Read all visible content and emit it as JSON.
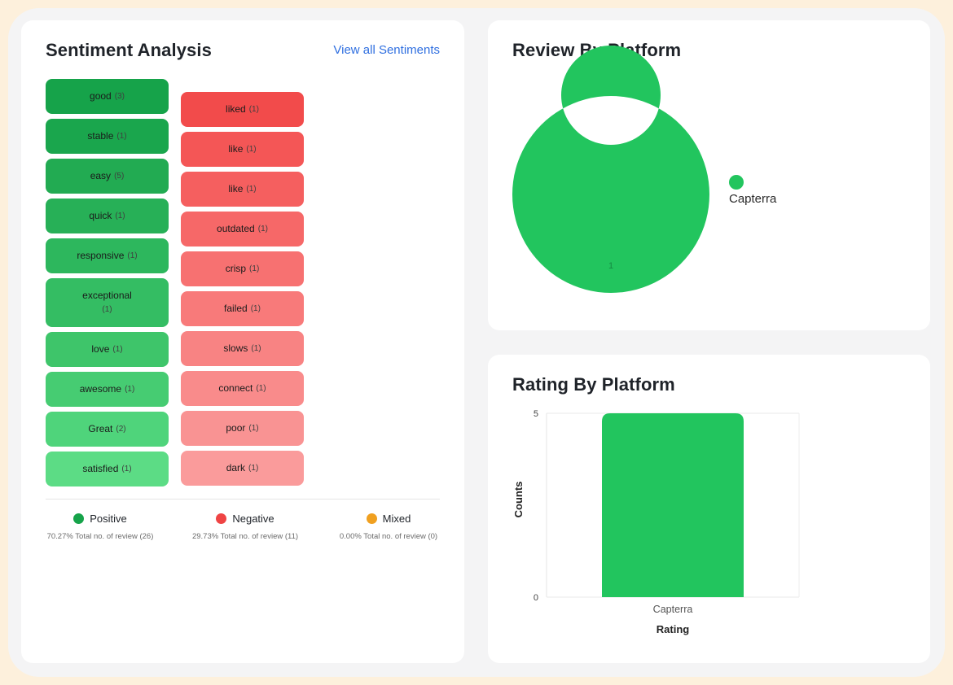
{
  "sentiment": {
    "title": "Sentiment Analysis",
    "view_all_label": "View all Sentiments",
    "positive_words": [
      {
        "word": "good",
        "count": "(3)",
        "color": "#16a34a"
      },
      {
        "word": "stable",
        "count": "(1)",
        "color": "#1aa64d"
      },
      {
        "word": "easy",
        "count": "(5)",
        "color": "#22ab52"
      },
      {
        "word": "quick",
        "count": "(1)",
        "color": "#27b057"
      },
      {
        "word": "responsive",
        "count": "(1)",
        "color": "#2db75d"
      },
      {
        "word": "exceptional",
        "count": "(1)",
        "color": "#34bd63"
      },
      {
        "word": "love",
        "count": "(1)",
        "color": "#3ec56a"
      },
      {
        "word": "awesome",
        "count": "(1)",
        "color": "#46cc72"
      },
      {
        "word": "Great",
        "count": "(2)",
        "color": "#4fd47b"
      },
      {
        "word": "satisfied",
        "count": "(1)",
        "color": "#5cdc85"
      }
    ],
    "negative_words": [
      {
        "word": "liked",
        "count": "(1)",
        "color": "#f24b4b"
      },
      {
        "word": "like",
        "count": "(1)",
        "color": "#f45656"
      },
      {
        "word": "like",
        "count": "(1)",
        "color": "#f55f5f"
      },
      {
        "word": "outdated",
        "count": "(1)",
        "color": "#f66868"
      },
      {
        "word": "crisp",
        "count": "(1)",
        "color": "#f77171"
      },
      {
        "word": "failed",
        "count": "(1)",
        "color": "#f87a7a"
      },
      {
        "word": "slows",
        "count": "(1)",
        "color": "#f88383"
      },
      {
        "word": "connect",
        "count": "(1)",
        "color": "#f98b8b"
      },
      {
        "word": "poor",
        "count": "(1)",
        "color": "#f99393"
      },
      {
        "word": "dark",
        "count": "(1)",
        "color": "#fa9b9b"
      }
    ],
    "legend": [
      {
        "label": "Positive",
        "summary": "70.27% Total no. of review (26)",
        "color": "#16a34a"
      },
      {
        "label": "Negative",
        "summary": "29.73% Total no. of review (11)",
        "color": "#ef4444"
      },
      {
        "label": "Mixed",
        "summary": "0.00% Total no. of review (0)",
        "color": "#f0a020"
      }
    ]
  },
  "review_by_platform": {
    "title": "Review By Platform",
    "legend_label": "Capterra",
    "chart_data": {
      "type": "pie",
      "categories": [
        "Capterra"
      ],
      "values": [
        1
      ],
      "data_labels": [
        "1"
      ],
      "colors": [
        "#22c55e"
      ],
      "legend_placement": "right"
    }
  },
  "rating_by_platform": {
    "title": "Rating By Platform",
    "chart_data": {
      "type": "bar",
      "categories": [
        "Capterra"
      ],
      "values": [
        5
      ],
      "xlabel": "Rating",
      "ylabel": "Counts",
      "y_ticks": [
        "0",
        "5"
      ],
      "ylim": [
        0,
        5
      ],
      "grid": true,
      "colors": [
        "#22c55e"
      ]
    }
  }
}
